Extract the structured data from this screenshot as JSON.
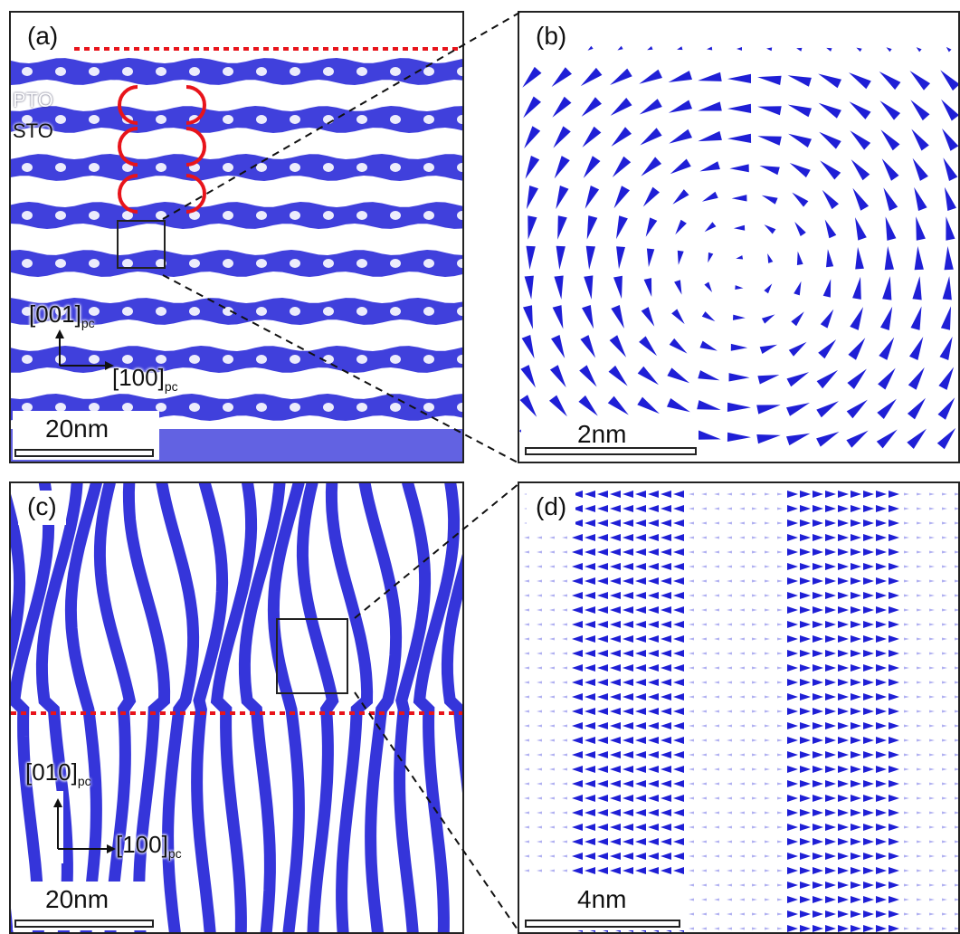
{
  "panels": {
    "a": {
      "label": "(a)",
      "layer_top": "PTO",
      "layer_bottom": "STO",
      "axis_up": "[001]",
      "axis_up_sub": "pc",
      "axis_right": "[100]",
      "axis_right_sub": "pc",
      "scale_bar": "20nm"
    },
    "b": {
      "label": "(b)",
      "scale_bar": "2nm"
    },
    "c": {
      "label": "(c)",
      "axis_up": "[010]",
      "axis_up_sub": "pc",
      "axis_right": "[100]",
      "axis_right_sub": "pc",
      "scale_bar": "20nm"
    },
    "d": {
      "label": "(d)",
      "scale_bar": "4nm"
    }
  },
  "colors": {
    "polarization": "#1f1fd6",
    "marker": "#e8141b",
    "frame": "#222222"
  }
}
